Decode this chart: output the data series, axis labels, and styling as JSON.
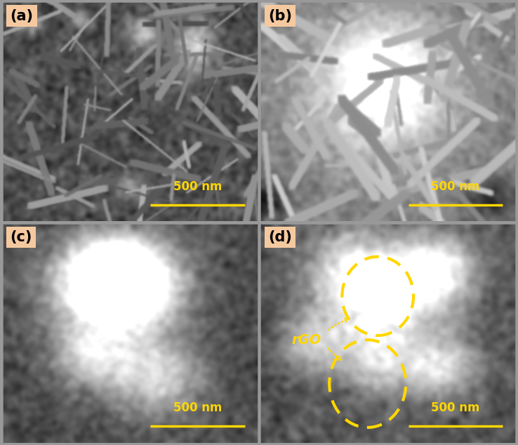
{
  "panels": [
    "(a)",
    "(b)",
    "(c)",
    "(d)"
  ],
  "label_bg_color": "#F5C9A0",
  "label_text_color": "#000000",
  "scalebar_color": "#FFD700",
  "scalebar_text": "500 nm",
  "rgo_label": "rGO",
  "rgo_color": "#FFD700",
  "figure_width": 7.38,
  "figure_height": 6.34,
  "border_color": "#999999",
  "fig_bg_color": "#999999",
  "gap_color": "#999999"
}
